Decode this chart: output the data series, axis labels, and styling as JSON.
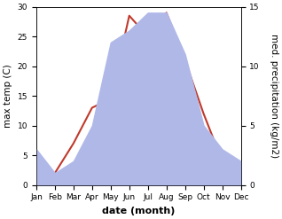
{
  "months": [
    "Jan",
    "Feb",
    "Mar",
    "Apr",
    "May",
    "Jun",
    "Jul",
    "Aug",
    "Sep",
    "Oct",
    "Nov",
    "Dec"
  ],
  "temperature": [
    1.0,
    2.0,
    7.0,
    13.0,
    14.5,
    28.5,
    25.0,
    29.0,
    21.0,
    12.0,
    4.0,
    0.5
  ],
  "precipitation": [
    3.0,
    1.0,
    2.0,
    5.0,
    12.0,
    13.0,
    14.5,
    14.5,
    11.0,
    5.0,
    3.0,
    2.0
  ],
  "temp_color": "#c0392b",
  "precip_fill_color": "#b0b8e8",
  "temp_ylim": [
    0,
    30
  ],
  "precip_ylim": [
    0,
    15
  ],
  "xlabel": "date (month)",
  "ylabel_left": "max temp (C)",
  "ylabel_right": "med. precipitation (kg/m2)",
  "bg_color": "#ffffff",
  "xlabel_fontsize": 8,
  "ylabel_fontsize": 7.5,
  "tick_fontsize": 6.5,
  "ylabel_right_fontsize": 7.5
}
